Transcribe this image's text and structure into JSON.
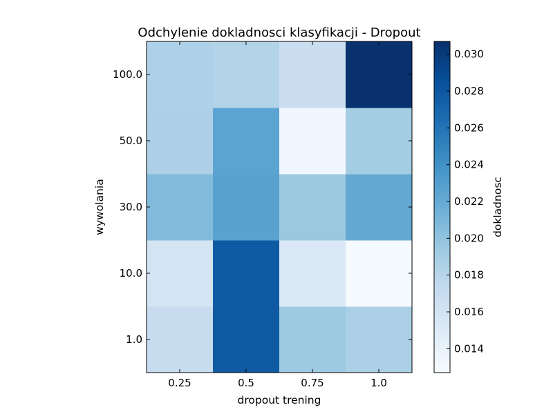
{
  "chart_data": {
    "type": "heatmap",
    "title": "Odchylenie dokladnosci klasyfikacji - Dropout",
    "xlabel": "dropout trening",
    "ylabel": "wywolania",
    "x_categories": [
      "0.25",
      "0.5",
      "0.75",
      "1.0"
    ],
    "y_categories": [
      "1.0",
      "10.0",
      "30.0",
      "50.0",
      "100.0"
    ],
    "values": [
      [
        0.017,
        0.0278,
        0.0195,
        0.0187
      ],
      [
        0.016,
        0.0278,
        0.0152,
        0.0129
      ],
      [
        0.0207,
        0.0227,
        0.0196,
        0.0221
      ],
      [
        0.0186,
        0.0226,
        0.0134,
        0.0191
      ],
      [
        0.0185,
        0.0183,
        0.0168,
        0.0306
      ]
    ],
    "colormap": "Blues",
    "colorbar": {
      "label": "dokladnosc",
      "range": [
        0.0127,
        0.0307
      ],
      "ticks": [
        "0.014",
        "0.016",
        "0.018",
        "0.020",
        "0.022",
        "0.024",
        "0.026",
        "0.028",
        "0.030"
      ]
    }
  }
}
